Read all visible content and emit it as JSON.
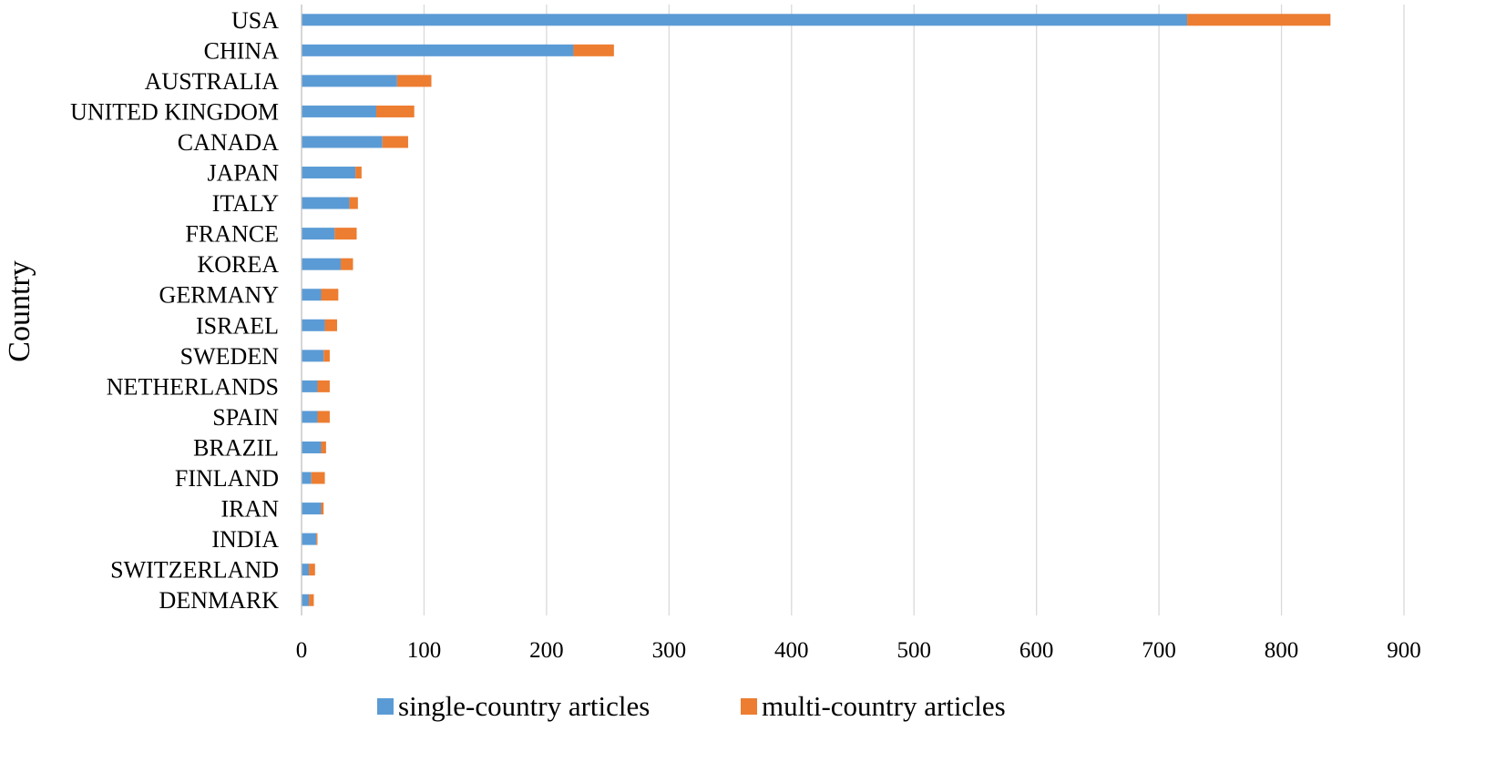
{
  "chart_data": {
    "type": "bar",
    "orientation": "horizontal",
    "stacked": true,
    "title": "",
    "xlabel": "",
    "ylabel": "Country",
    "xlim": [
      0,
      900
    ],
    "x_ticks": [
      0,
      100,
      200,
      300,
      400,
      500,
      600,
      700,
      800,
      900
    ],
    "grid": "vertical",
    "legend_position": "bottom",
    "categories": [
      "USA",
      "CHINA",
      "AUSTRALIA",
      "UNITED KINGDOM",
      "CANADA",
      "JAPAN",
      "ITALY",
      "FRANCE",
      "KOREA",
      "GERMANY",
      "ISRAEL",
      "SWEDEN",
      "NETHERLANDS",
      "SPAIN",
      "BRAZIL",
      "FINLAND",
      "IRAN",
      "INDIA",
      "SWITZERLAND",
      "DENMARK"
    ],
    "series": [
      {
        "name": "single-country articles",
        "color": "#5b9bd5",
        "values": [
          723,
          222,
          78,
          61,
          66,
          44,
          39,
          27,
          32,
          16,
          19,
          18,
          13,
          13,
          16,
          8,
          16,
          12,
          6,
          6
        ]
      },
      {
        "name": "multi-country articles",
        "color": "#ed7d31",
        "values": [
          117,
          33,
          28,
          31,
          21,
          5,
          7,
          18,
          10,
          14,
          10,
          5,
          10,
          10,
          4,
          11,
          2,
          1,
          5,
          4
        ]
      }
    ]
  }
}
